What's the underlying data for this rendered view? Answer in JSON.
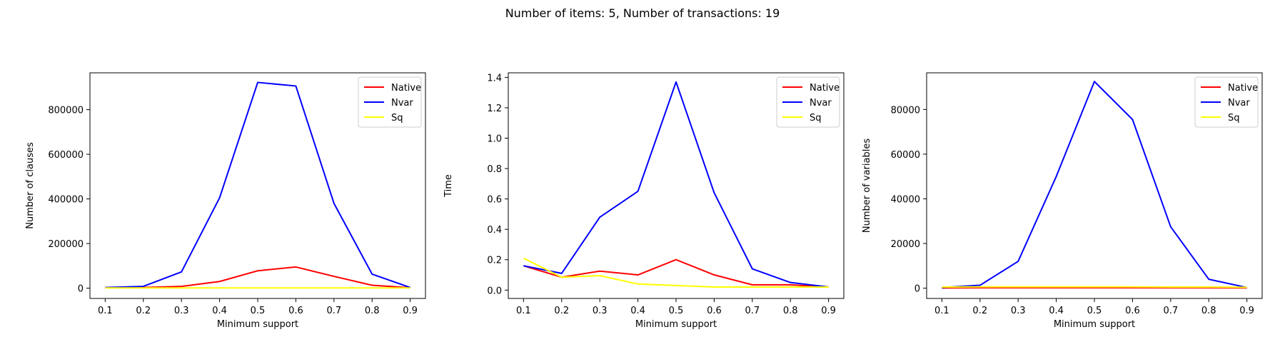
{
  "figure": {
    "suptitle": "Number of items: 5, Number of transactions: 19"
  },
  "chart_data": [
    {
      "type": "line",
      "xlabel": "Minimum support",
      "ylabel": "Number of clauses",
      "x": [
        0.1,
        0.2,
        0.3,
        0.4,
        0.5,
        0.6,
        0.7,
        0.8,
        0.9
      ],
      "xticks": [
        "0.1",
        "0.2",
        "0.3",
        "0.4",
        "0.5",
        "0.6",
        "0.7",
        "0.8",
        "0.9"
      ],
      "xlim": [
        0.06,
        0.94
      ],
      "ylim": [
        -46000,
        965000
      ],
      "yticks": [
        0,
        200000,
        400000,
        600000,
        800000
      ],
      "ytick_labels": [
        "0",
        "200000",
        "400000",
        "600000",
        "800000"
      ],
      "legend_position": "top-right",
      "grid": false,
      "series": [
        {
          "name": "Native",
          "color": "#ff0000",
          "values": [
            2000,
            3000,
            8000,
            30000,
            78000,
            95000,
            53000,
            13000,
            2000
          ]
        },
        {
          "name": "Nvar",
          "color": "#0000ff",
          "values": [
            3000,
            8000,
            73000,
            405000,
            922000,
            906000,
            380000,
            63000,
            3000
          ]
        },
        {
          "name": "Sq",
          "color": "#ffff00",
          "values": [
            1000,
            1000,
            1000,
            1000,
            1000,
            1000,
            1000,
            1000,
            1000
          ]
        }
      ]
    },
    {
      "type": "line",
      "xlabel": "Minimum support",
      "ylabel": "Time",
      "x": [
        0.1,
        0.2,
        0.3,
        0.4,
        0.5,
        0.6,
        0.7,
        0.8,
        0.9
      ],
      "xticks": [
        "0.1",
        "0.2",
        "0.3",
        "0.4",
        "0.5",
        "0.6",
        "0.7",
        "0.8",
        "0.9"
      ],
      "xlim": [
        0.06,
        0.94
      ],
      "ylim": [
        -0.055,
        1.43
      ],
      "yticks": [
        0.0,
        0.2,
        0.4,
        0.6,
        0.8,
        1.0,
        1.2,
        1.4
      ],
      "ytick_labels": [
        "0.0",
        "0.2",
        "0.4",
        "0.6",
        "0.8",
        "1.0",
        "1.2",
        "1.4"
      ],
      "legend_position": "top-right",
      "grid": false,
      "series": [
        {
          "name": "Native",
          "color": "#ff0000",
          "values": [
            0.16,
            0.085,
            0.125,
            0.1,
            0.2,
            0.1,
            0.035,
            0.035,
            0.02
          ]
        },
        {
          "name": "Nvar",
          "color": "#0000ff",
          "values": [
            0.16,
            0.11,
            0.48,
            0.65,
            1.37,
            0.64,
            0.14,
            0.05,
            0.02
          ]
        },
        {
          "name": "Sq",
          "color": "#ffff00",
          "values": [
            0.21,
            0.085,
            0.095,
            0.04,
            0.03,
            0.02,
            0.02,
            0.02,
            0.02
          ]
        }
      ]
    },
    {
      "type": "line",
      "xlabel": "Minimum support",
      "ylabel": "Number of variables",
      "x": [
        0.1,
        0.2,
        0.3,
        0.4,
        0.5,
        0.6,
        0.7,
        0.8,
        0.9
      ],
      "xticks": [
        "0.1",
        "0.2",
        "0.3",
        "0.4",
        "0.5",
        "0.6",
        "0.7",
        "0.8",
        "0.9"
      ],
      "xlim": [
        0.06,
        0.94
      ],
      "ylim": [
        -4600,
        96400
      ],
      "yticks": [
        0,
        20000,
        40000,
        60000,
        80000
      ],
      "ytick_labels": [
        "0",
        "20000",
        "40000",
        "60000",
        "80000"
      ],
      "legend_position": "top-right",
      "grid": false,
      "series": [
        {
          "name": "Native",
          "color": "#ff0000",
          "values": [
            100,
            200,
            200,
            200,
            200,
            200,
            200,
            200,
            100
          ]
        },
        {
          "name": "Nvar",
          "color": "#0000ff",
          "values": [
            300,
            1300,
            12000,
            50000,
            92500,
            75500,
            27500,
            4000,
            300
          ]
        },
        {
          "name": "Sq",
          "color": "#ffff00",
          "values": [
            500,
            600,
            600,
            600,
            600,
            600,
            500,
            500,
            400
          ]
        }
      ]
    }
  ]
}
